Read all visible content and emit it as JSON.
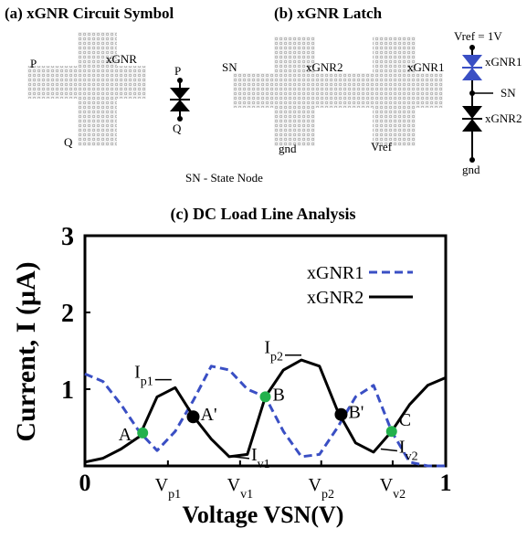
{
  "panels": {
    "a": {
      "title": "(a) xGNR Circuit Symbol",
      "p": "P",
      "xgnr": "xGNR",
      "q": "Q",
      "sym_p": "P",
      "sym_q": "Q"
    },
    "b": {
      "title": "(b) xGNR Latch",
      "sn": "SN",
      "xgnr2": "xGNR2",
      "xgnr1": "xGNR1",
      "gnd": "gnd",
      "vref": "Vref",
      "note": "SN - State Node",
      "sym_vref": "Vref = 1V",
      "sym_xgnr1": "xGNR1",
      "sym_sn": "SN",
      "sym_xgnr2": "xGNR2",
      "sym_gnd": "gnd"
    }
  },
  "chart_data": {
    "type": "line",
    "title": "(c) DC Load Line Analysis",
    "xlabel": "Voltage VSN(V)",
    "ylabel": "Current, I (μA)",
    "x": [
      0,
      0.05,
      0.1,
      0.15,
      0.2,
      0.25,
      0.3,
      0.35,
      0.4,
      0.45,
      0.5,
      0.55,
      0.6,
      0.65,
      0.7,
      0.75,
      0.8,
      0.85,
      0.9,
      0.95,
      1
    ],
    "series": [
      {
        "name": "xGNR1",
        "color": "#3a4fc4",
        "dash": true,
        "values": [
          1.2,
          1.1,
          0.8,
          0.45,
          0.2,
          0.45,
          0.85,
          1.3,
          1.25,
          1.0,
          0.9,
          0.45,
          0.12,
          0.15,
          0.5,
          0.9,
          1.05,
          0.45,
          0.05,
          0,
          0
        ]
      },
      {
        "name": "xGNR2",
        "color": "#000000",
        "dash": false,
        "values": [
          0.05,
          0.1,
          0.22,
          0.38,
          0.9,
          1.02,
          0.65,
          0.35,
          0.12,
          0.15,
          0.9,
          1.25,
          1.38,
          1.3,
          0.72,
          0.3,
          0.18,
          0.45,
          0.8,
          1.05,
          1.15
        ]
      }
    ],
    "xlim": [
      0,
      1
    ],
    "ylim": [
      0,
      3
    ],
    "xticks": [
      0,
      {
        "value": 0.23,
        "label": "Vp1"
      },
      {
        "value": 0.43,
        "label": "Vv1"
      },
      {
        "value": 0.655,
        "label": "Vp2"
      },
      {
        "value": 0.853,
        "label": "Vv2"
      },
      1
    ],
    "yticks": [
      1,
      2,
      3
    ],
    "points": [
      {
        "label": "A",
        "x": 0.16,
        "y": 0.43,
        "color": "#22b14c"
      },
      {
        "label": "A'",
        "x": 0.3,
        "y": 0.64,
        "color": "#000000"
      },
      {
        "label": "B",
        "x": 0.5,
        "y": 0.9,
        "color": "#22b14c"
      },
      {
        "label": "B'",
        "x": 0.71,
        "y": 0.67,
        "color": "#000000"
      },
      {
        "label": "C",
        "x": 0.85,
        "y": 0.45,
        "color": "#22b14c"
      }
    ],
    "annotations": [
      {
        "text": "Ip1",
        "x": 0.24,
        "y": 1.1
      },
      {
        "text": "Iv1",
        "x": 0.41,
        "y": 0.12
      },
      {
        "text": "Ip2",
        "x": 0.6,
        "y": 1.42
      },
      {
        "text": "Iv2",
        "x": 0.82,
        "y": 0.22
      }
    ],
    "legend": "upper right",
    "grid": false
  }
}
